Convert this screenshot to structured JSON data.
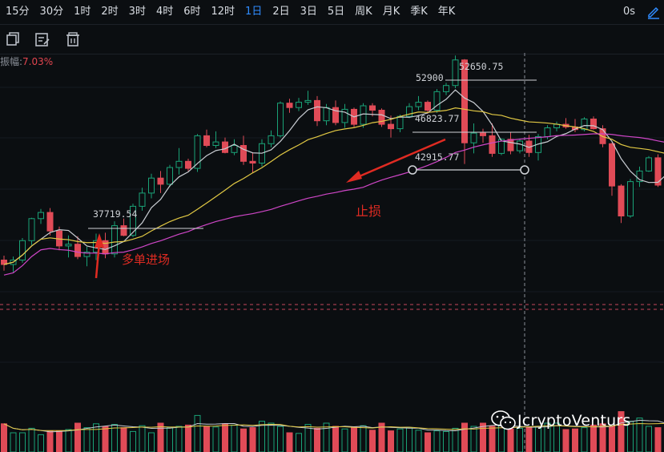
{
  "timeframes": [
    "15分",
    "30分",
    "1时",
    "2时",
    "3时",
    "4时",
    "6时",
    "12时",
    "1日",
    "2日",
    "3日",
    "5日",
    "周K",
    "月K",
    "季K",
    "年K"
  ],
  "active_timeframe": "1日",
  "right_label": "0s",
  "toolbar_icons": [
    "copy-icon",
    "edit-icon",
    "trash-icon"
  ],
  "amplitude_label": "振幅:",
  "amplitude_value": "7.03%",
  "colors": {
    "up": "#1aa277",
    "down": "#e04b57",
    "ma_white": "#c8ccd2",
    "ma_yellow": "#e2c944",
    "ma_pink": "#cf46c7",
    "annotation": "#e02b22",
    "active_tab": "#2f8cff"
  },
  "annotations": {
    "price_high": "52650.75",
    "price_52900": "52900",
    "price_46823": "46823.77",
    "price_42915": "42915.77",
    "price_37719": "37719.54",
    "stop_loss": "止损",
    "long_entry": "多单进场"
  },
  "watermark": "JcryptoVenturs",
  "chart_data": {
    "type": "candlestick",
    "y_unit": "USD",
    "ylim": [
      27000,
      57000
    ],
    "candles": [
      [
        33500,
        34000,
        32300,
        33000
      ],
      [
        33000,
        33900,
        32100,
        33500
      ],
      [
        33500,
        36000,
        33200,
        35700
      ],
      [
        35700,
        38300,
        35200,
        38200
      ],
      [
        38200,
        39300,
        37600,
        38900
      ],
      [
        38900,
        39400,
        36300,
        36800
      ],
      [
        36800,
        37300,
        34600,
        35100
      ],
      [
        35100,
        36300,
        33800,
        35300
      ],
      [
        35300,
        36200,
        33600,
        33900
      ],
      [
        33900,
        35000,
        32800,
        34400
      ],
      [
        34400,
        36500,
        33500,
        35700
      ],
      [
        35700,
        36600,
        33700,
        34200
      ],
      [
        34200,
        37900,
        33800,
        37400
      ],
      [
        37400,
        38200,
        36200,
        36300
      ],
      [
        36300,
        39900,
        36100,
        39600
      ],
      [
        39600,
        41700,
        39100,
        41100
      ],
      [
        41100,
        43300,
        40500,
        42800
      ],
      [
        42800,
        43600,
        41100,
        42100
      ],
      [
        42100,
        44300,
        41800,
        44000
      ],
      [
        44000,
        46200,
        43200,
        44700
      ],
      [
        44700,
        45000,
        43600,
        43900
      ],
      [
        43900,
        47800,
        43500,
        47600
      ],
      [
        47600,
        48300,
        46300,
        46500
      ],
      [
        46500,
        48100,
        46200,
        46900
      ],
      [
        46900,
        47400,
        45600,
        45700
      ],
      [
        45700,
        47200,
        45400,
        46500
      ],
      [
        46500,
        47600,
        44300,
        44700
      ],
      [
        44700,
        45700,
        43400,
        44500
      ],
      [
        44500,
        47200,
        44100,
        46700
      ],
      [
        46700,
        48200,
        46300,
        47600
      ],
      [
        47600,
        51500,
        47400,
        51300
      ],
      [
        51300,
        51800,
        50200,
        50800
      ],
      [
        50800,
        51900,
        50400,
        51400
      ],
      [
        51400,
        52700,
        51100,
        51600
      ],
      [
        51600,
        52100,
        48700,
        49300
      ],
      [
        49300,
        51200,
        48800,
        50800
      ],
      [
        50800,
        51600,
        48800,
        49100
      ],
      [
        49100,
        51200,
        48500,
        50600
      ],
      [
        50600,
        50800,
        48600,
        48900
      ],
      [
        48900,
        51300,
        48500,
        51000
      ],
      [
        51000,
        51300,
        49800,
        50500
      ],
      [
        50500,
        50700,
        48600,
        48900
      ],
      [
        48900,
        49900,
        47400,
        48400
      ],
      [
        48400,
        50000,
        48000,
        49800
      ],
      [
        49800,
        51300,
        49600,
        50900
      ],
      [
        50900,
        52100,
        50500,
        51400
      ],
      [
        51400,
        51600,
        50100,
        50500
      ],
      [
        50500,
        52900,
        50200,
        52600
      ],
      [
        52600,
        53600,
        52200,
        53300
      ],
      [
        53300,
        56700,
        53000,
        56200
      ],
      [
        56200,
        56300,
        44400,
        46800
      ],
      [
        46800,
        49000,
        45600,
        47900
      ],
      [
        47900,
        48400,
        46800,
        47600
      ],
      [
        47600,
        49000,
        45200,
        45600
      ],
      [
        45600,
        47300,
        45400,
        47200
      ],
      [
        47200,
        48000,
        45500,
        45900
      ],
      [
        45900,
        47300,
        45600,
        47000
      ],
      [
        47000,
        47700,
        45200,
        45700
      ],
      [
        45700,
        47800,
        44800,
        47500
      ],
      [
        47500,
        48800,
        47200,
        48500
      ],
      [
        48500,
        49200,
        48100,
        48900
      ],
      [
        48900,
        49600,
        48400,
        48600
      ],
      [
        48600,
        49500,
        48000,
        48300
      ],
      [
        48300,
        49700,
        48100,
        49500
      ],
      [
        49500,
        49800,
        48300,
        48400
      ],
      [
        48400,
        48800,
        46300,
        46700
      ],
      [
        46700,
        46800,
        40800,
        41900
      ],
      [
        41900,
        42100,
        37700,
        38500
      ],
      [
        38500,
        42700,
        38300,
        42400
      ],
      [
        42400,
        44100,
        41800,
        43600
      ],
      [
        43600,
        45300,
        43500,
        45100
      ],
      [
        45100,
        45500,
        41800,
        42000
      ],
      [
        42000,
        44500,
        41200,
        43300
      ]
    ],
    "volume_ylim": [
      0,
      100
    ],
    "volume": [
      44,
      30,
      30,
      37,
      27,
      33,
      33,
      35,
      45,
      38,
      44,
      40,
      43,
      38,
      32,
      41,
      30,
      45,
      38,
      40,
      42,
      57,
      40,
      39,
      44,
      42,
      36,
      38,
      48,
      45,
      40,
      30,
      29,
      43,
      37,
      45,
      40,
      36,
      39,
      41,
      34,
      45,
      33,
      36,
      38,
      34,
      30,
      33,
      32,
      37,
      45,
      40,
      45,
      40,
      42,
      36,
      37,
      39,
      40,
      45,
      45,
      35,
      36,
      38,
      42,
      44,
      40,
      63,
      48,
      53,
      40,
      38,
      42
    ],
    "price_labels": [
      "52650.75",
      "52900",
      "46823.77",
      "42915.77",
      "37719.54"
    ],
    "indicators": [
      "MA short (white)",
      "MA medium (yellow)",
      "MA long (magenta)"
    ]
  }
}
